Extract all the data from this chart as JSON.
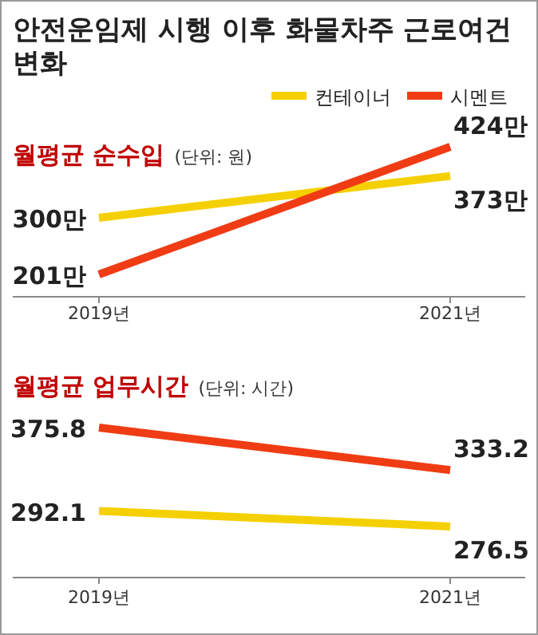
{
  "chart_data": [
    {
      "type": "line",
      "title": "안전운임제 시행 이후 화물차주 근로여건 변화",
      "subtitle": "월평균 순수입",
      "annotations": [
        "(단위: 원)"
      ],
      "categories": [
        "2019년",
        "2021년"
      ],
      "legend": "top right",
      "grid": false,
      "marker": "none",
      "line_style": "solid",
      "series": [
        {
          "name": "컨테이너",
          "color": "#f5d000",
          "values": [
            300,
            373
          ],
          "value_labels": [
            "300만",
            "373만"
          ]
        },
        {
          "name": "시멘트",
          "color": "#f03c14",
          "values": [
            201,
            424
          ],
          "value_labels": [
            "201만",
            "424만"
          ]
        }
      ]
    },
    {
      "type": "line",
      "title": "월평균 업무시간",
      "annotations": [
        "(단위: 시간)"
      ],
      "categories": [
        "2019년",
        "2021년"
      ],
      "grid": false,
      "marker": "none",
      "line_style": "solid",
      "data_labels": true,
      "series": [
        {
          "color": "#f5d000",
          "values": [
            292.1,
            276.5
          ]
        },
        {
          "color": "#f03c14",
          "values": [
            375.8,
            333.2
          ]
        }
      ]
    }
  ]
}
